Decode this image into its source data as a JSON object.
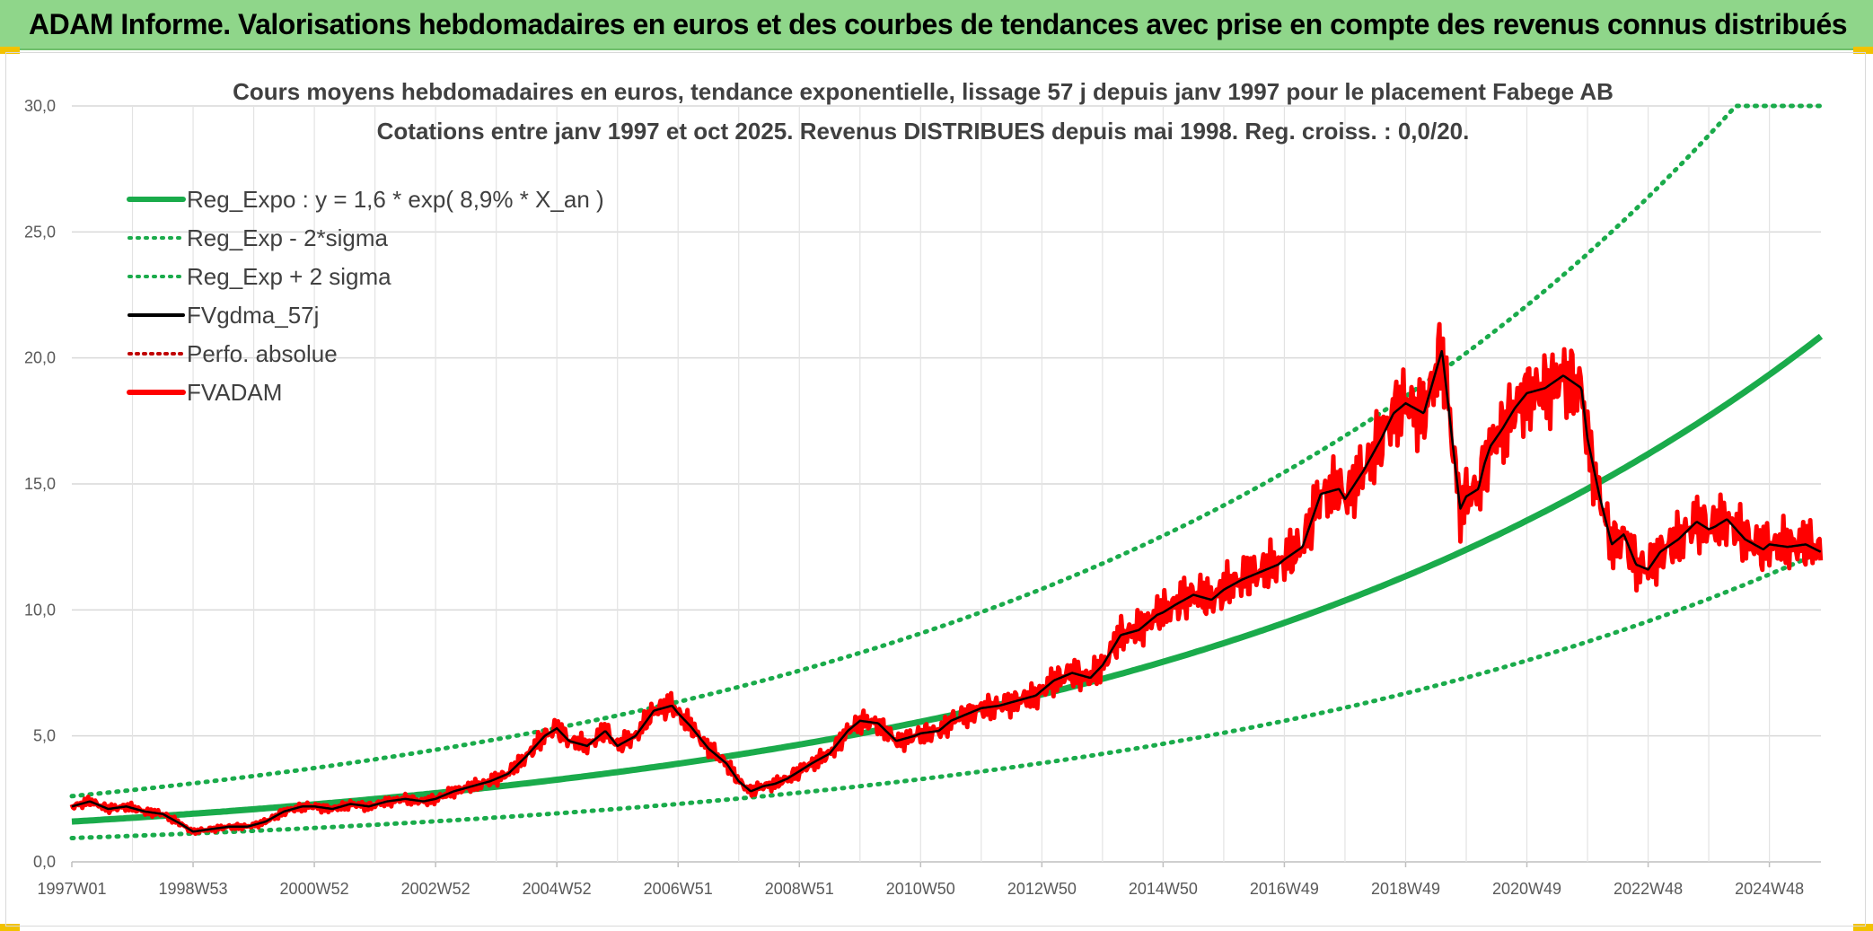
{
  "header": {
    "title": "ADAM Informe. Valorisations hebdomadaires en euros et des courbes de tendances avec prise en compte des revenus connus distribués"
  },
  "chart_data": {
    "type": "line",
    "title": "Cours moyens hebdomadaires en euros, tendance exponentielle, lissage 57 j depuis janv 1997 pour le placement Fabege AB",
    "subtitle": "Cotations entre janv 1997 et oct 2025. Revenus DISTRIBUES depuis mai 1998. Reg. croiss. : 0,0/20.",
    "xlabel": "",
    "ylabel": "",
    "ylim": [
      0,
      30
    ],
    "yticks": [
      "0,0",
      "5,0",
      "10,0",
      "15,0",
      "20,0",
      "25,0",
      "30,0"
    ],
    "xlim": [
      1997.0,
      2025.85
    ],
    "xticks": [
      {
        "label": "1997W01",
        "x": 1997.0
      },
      {
        "label": "1998W53",
        "x": 1999.0
      },
      {
        "label": "2000W52",
        "x": 2001.0
      },
      {
        "label": "2002W52",
        "x": 2003.0
      },
      {
        "label": "2004W52",
        "x": 2005.0
      },
      {
        "label": "2006W51",
        "x": 2007.0
      },
      {
        "label": "2008W51",
        "x": 2009.0
      },
      {
        "label": "2010W50",
        "x": 2011.0
      },
      {
        "label": "2012W50",
        "x": 2013.0
      },
      {
        "label": "2014W50",
        "x": 2015.0
      },
      {
        "label": "2016W49",
        "x": 2017.0
      },
      {
        "label": "2018W49",
        "x": 2019.0
      },
      {
        "label": "2020W49",
        "x": 2021.0
      },
      {
        "label": "2022W48",
        "x": 2023.0
      },
      {
        "label": "2024W48",
        "x": 2025.0
      }
    ],
    "grid": true,
    "legend_position": "top-left",
    "colors": {
      "reg": "#1aab4b",
      "smooth": "#000000",
      "price": "#ff0000",
      "perfo": "#c00000"
    },
    "regression": {
      "a": 1.6,
      "rate": 0.089,
      "low_factor": 0.59,
      "high_factor": 1.63,
      "cap": 30
    },
    "series": [
      {
        "name": "Reg_Expo : y = 1,6 * exp( 8,9% *  X_an )",
        "style": "solid-green-thick"
      },
      {
        "name": "Reg_Exp - 2*sigma",
        "style": "dotted-green"
      },
      {
        "name": "Reg_Exp + 2 sigma",
        "style": "dotted-green"
      },
      {
        "name": "FVgdma_57j",
        "style": "solid-black"
      },
      {
        "name": "Perfo. absolue",
        "style": "dotted-darkred"
      },
      {
        "name": "FVADAM",
        "style": "solid-red-thick",
        "x": [
          1997.0,
          1997.3,
          1997.6,
          1997.9,
          1998.2,
          1998.5,
          1998.8,
          1999.0,
          1999.3,
          1999.6,
          1999.9,
          2000.2,
          2000.5,
          2000.8,
          2001.0,
          2001.3,
          2001.6,
          2001.9,
          2002.2,
          2002.5,
          2002.8,
          2003.0,
          2003.3,
          2003.6,
          2003.9,
          2004.2,
          2004.5,
          2004.8,
          2005.0,
          2005.2,
          2005.5,
          2005.8,
          2006.0,
          2006.3,
          2006.6,
          2006.9,
          2007.0,
          2007.2,
          2007.5,
          2007.8,
          2008.0,
          2008.2,
          2008.4,
          2008.6,
          2008.8,
          2009.0,
          2009.2,
          2009.5,
          2009.8,
          2010.0,
          2010.3,
          2010.6,
          2010.9,
          2011.0,
          2011.3,
          2011.5,
          2011.8,
          2012.0,
          2012.3,
          2012.6,
          2012.9,
          2013.2,
          2013.5,
          2013.8,
          2014.0,
          2014.3,
          2014.6,
          2014.9,
          2015.0,
          2015.2,
          2015.5,
          2015.8,
          2016.0,
          2016.3,
          2016.6,
          2016.9,
          2017.0,
          2017.3,
          2017.6,
          2017.9,
          2018.0,
          2018.3,
          2018.6,
          2018.8,
          2019.0,
          2019.3,
          2019.6,
          2019.9,
          2020.0,
          2020.2,
          2020.3,
          2020.4,
          2020.6,
          2020.8,
          2021.0,
          2021.3,
          2021.6,
          2021.9,
          2022.0,
          2022.2,
          2022.4,
          2022.6,
          2022.8,
          2023.0,
          2023.2,
          2023.5,
          2023.8,
          2024.0,
          2024.1,
          2024.3,
          2024.6,
          2024.9,
          2025.0,
          2025.3,
          2025.6,
          2025.85
        ],
        "y": [
          2.2,
          2.4,
          2.1,
          2.2,
          2.0,
          1.9,
          1.5,
          1.2,
          1.3,
          1.4,
          1.4,
          1.6,
          2.0,
          2.2,
          2.2,
          2.1,
          2.3,
          2.2,
          2.4,
          2.5,
          2.4,
          2.5,
          2.8,
          3.0,
          3.2,
          3.5,
          4.2,
          5.0,
          5.3,
          4.8,
          4.6,
          5.2,
          4.6,
          5.0,
          6.0,
          6.2,
          5.9,
          5.4,
          4.5,
          3.9,
          3.2,
          2.8,
          3.0,
          3.1,
          3.3,
          3.6,
          3.9,
          4.3,
          5.2,
          5.6,
          5.5,
          4.8,
          5.0,
          5.1,
          5.2,
          5.6,
          5.9,
          6.1,
          6.2,
          6.4,
          6.6,
          7.2,
          7.5,
          7.3,
          7.8,
          9.0,
          9.2,
          9.8,
          9.9,
          10.2,
          10.6,
          10.4,
          10.8,
          11.2,
          11.5,
          11.8,
          12.0,
          12.5,
          14.6,
          14.8,
          14.4,
          15.5,
          16.8,
          17.8,
          18.2,
          17.8,
          20.3,
          14.0,
          14.5,
          14.8,
          15.8,
          16.5,
          17.2,
          18.0,
          18.6,
          18.8,
          19.3,
          18.8,
          16.8,
          14.5,
          12.6,
          13.0,
          11.8,
          11.6,
          12.3,
          12.8,
          13.5,
          13.2,
          13.3,
          13.6,
          12.8,
          12.4,
          12.6,
          12.5,
          12.6,
          12.3
        ]
      }
    ]
  }
}
